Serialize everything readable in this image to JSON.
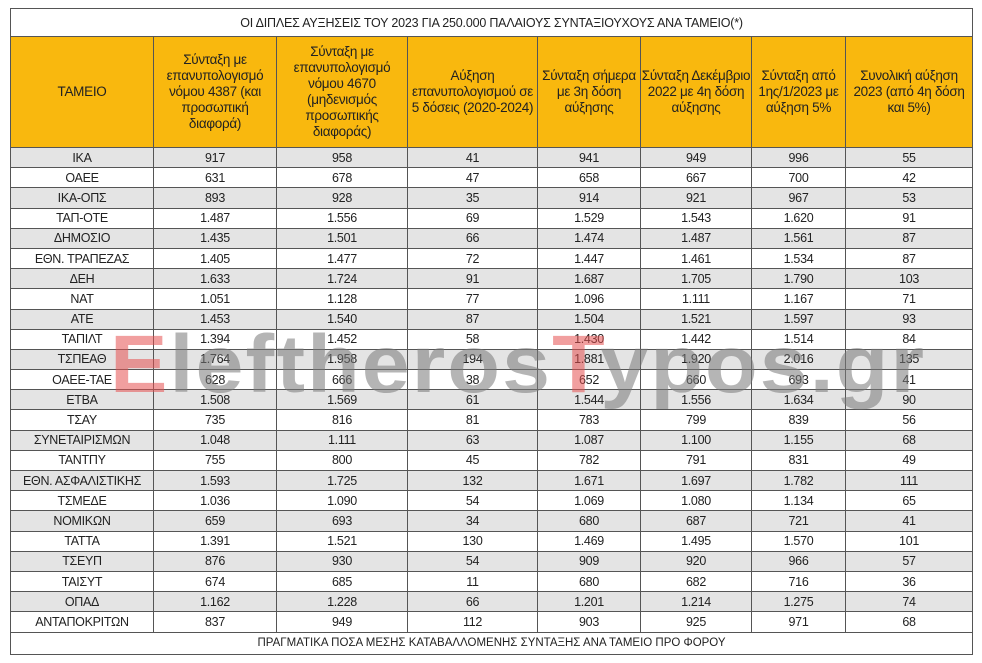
{
  "title": "ΟΙ ΔΙΠΛΕΣ ΑΥΞΗΣΕΙΣ ΤΟΥ 2023 ΓΙΑ 250.000 ΠΑΛΑΙΟΥΣ ΣΥΝΤΑΞΙΟΥΧΟΥΣ ΑΝΑ ΤΑΜΕΙΟ(*)",
  "headers": [
    "ΤΑΜΕΙΟ",
    "Σύνταξη με επανυπολογισμό νόμου 4387 (και προσωπική διαφορά)",
    "Σύνταξη με επανυπολογισμό νόμου 4670 (μηδενισμός προσωπικής διαφοράς)",
    "Αύξηση επανυπολογισμού σε 5 δόσεις (2020-2024)",
    "Σύνταξη σήμερα με 3η δόση αύξησης",
    "Σύνταξη Δεκέμβριο 2022 με 4η δόση αύξησης",
    "Σύνταξη από 1ης/1/2023 με αύξηση 5%",
    "Συνολική αύξηση 2023 (από 4η δόση και 5%)"
  ],
  "rows": [
    [
      "ΙΚΑ",
      "917",
      "958",
      "41",
      "941",
      "949",
      "996",
      "55"
    ],
    [
      "ΟΑΕΕ",
      "631",
      "678",
      "47",
      "658",
      "667",
      "700",
      "42"
    ],
    [
      "ΙΚΑ-ΟΠΣ",
      "893",
      "928",
      "35",
      "914",
      "921",
      "967",
      "53"
    ],
    [
      "ΤΑΠ-ΟΤΕ",
      "1.487",
      "1.556",
      "69",
      "1.529",
      "1.543",
      "1.620",
      "91"
    ],
    [
      "ΔΗΜΟΣΙΟ",
      "1.435",
      "1.501",
      "66",
      "1.474",
      "1.487",
      "1.561",
      "87"
    ],
    [
      "ΕΘΝ. ΤΡΑΠΕΖΑΣ",
      "1.405",
      "1.477",
      "72",
      "1.447",
      "1.461",
      "1.534",
      "87"
    ],
    [
      "ΔΕΗ",
      "1.633",
      "1.724",
      "91",
      "1.687",
      "1.705",
      "1.790",
      "103"
    ],
    [
      "ΝΑΤ",
      "1.051",
      "1.128",
      "77",
      "1.096",
      "1.111",
      "1.167",
      "71"
    ],
    [
      "ΑΤΕ",
      "1.453",
      "1.540",
      "87",
      "1.504",
      "1.521",
      "1.597",
      "93"
    ],
    [
      "ΤΑΠΙΛΤ",
      "1.394",
      "1.452",
      "58",
      "1.430",
      "1.442",
      "1.514",
      "84"
    ],
    [
      "ΤΣΠΕΑΘ",
      "1.764",
      "1.958",
      "194",
      "1.881",
      "1.920",
      "2.016",
      "135"
    ],
    [
      "ΟΑΕΕ-ΤΑΕ",
      "628",
      "666",
      "38",
      "652",
      "660",
      "693",
      "41"
    ],
    [
      "ΕΤΒΑ",
      "1.508",
      "1.569",
      "61",
      "1.544",
      "1.556",
      "1.634",
      "90"
    ],
    [
      "ΤΣΑΥ",
      "735",
      "816",
      "81",
      "783",
      "799",
      "839",
      "56"
    ],
    [
      "ΣΥΝΕΤΑΙΡΙΣΜΩΝ",
      "1.048",
      "1.111",
      "63",
      "1.087",
      "1.100",
      "1.155",
      "68"
    ],
    [
      "ΤΑΝΤΠΥ",
      "755",
      "800",
      "45",
      "782",
      "791",
      "831",
      "49"
    ],
    [
      "ΕΘΝ. ΑΣΦΑΛΙΣΤΙΚΗΣ",
      "1.593",
      "1.725",
      "132",
      "1.671",
      "1.697",
      "1.782",
      "111"
    ],
    [
      "ΤΣΜΕΔΕ",
      "1.036",
      "1.090",
      "54",
      "1.069",
      "1.080",
      "1.134",
      "65"
    ],
    [
      "ΝΟΜΙΚΩΝ",
      "659",
      "693",
      "34",
      "680",
      "687",
      "721",
      "41"
    ],
    [
      "ΤΑΤΤΑ",
      "1.391",
      "1.521",
      "130",
      "1.469",
      "1.495",
      "1.570",
      "101"
    ],
    [
      "ΤΣΕΥΠ",
      "876",
      "930",
      "54",
      "909",
      "920",
      "966",
      "57"
    ],
    [
      "ΤΑΙΣΥΤ",
      "674",
      "685",
      "11",
      "680",
      "682",
      "716",
      "36"
    ],
    [
      "ΟΠΑΔ",
      "1.162",
      "1.228",
      "66",
      "1.201",
      "1.214",
      "1.275",
      "74"
    ],
    [
      "ΑΝΤΑΠΟΚΡΙΤΩΝ",
      "837",
      "949",
      "112",
      "903",
      "925",
      "971",
      "68"
    ]
  ],
  "footer": "ΠΡΑΓΜΑΤΙΚΑ ΠΟΣΑ ΜΕΣΗΣ ΚΑΤΑΒΑΛΛΟΜΕΝΗΣ ΣΥΝΤΑΞΗΣ ΑΝΑ ΤΑΜΕΙΟ ΠΡΟ ΦΟΡΟΥ",
  "watermark": {
    "part1": "E",
    "part2": "leftheros",
    "part3": "T",
    "part4": "ypos.gr"
  },
  "colors": {
    "header_bg": "#f9b80e",
    "row_alt": "#e4e4e4"
  }
}
